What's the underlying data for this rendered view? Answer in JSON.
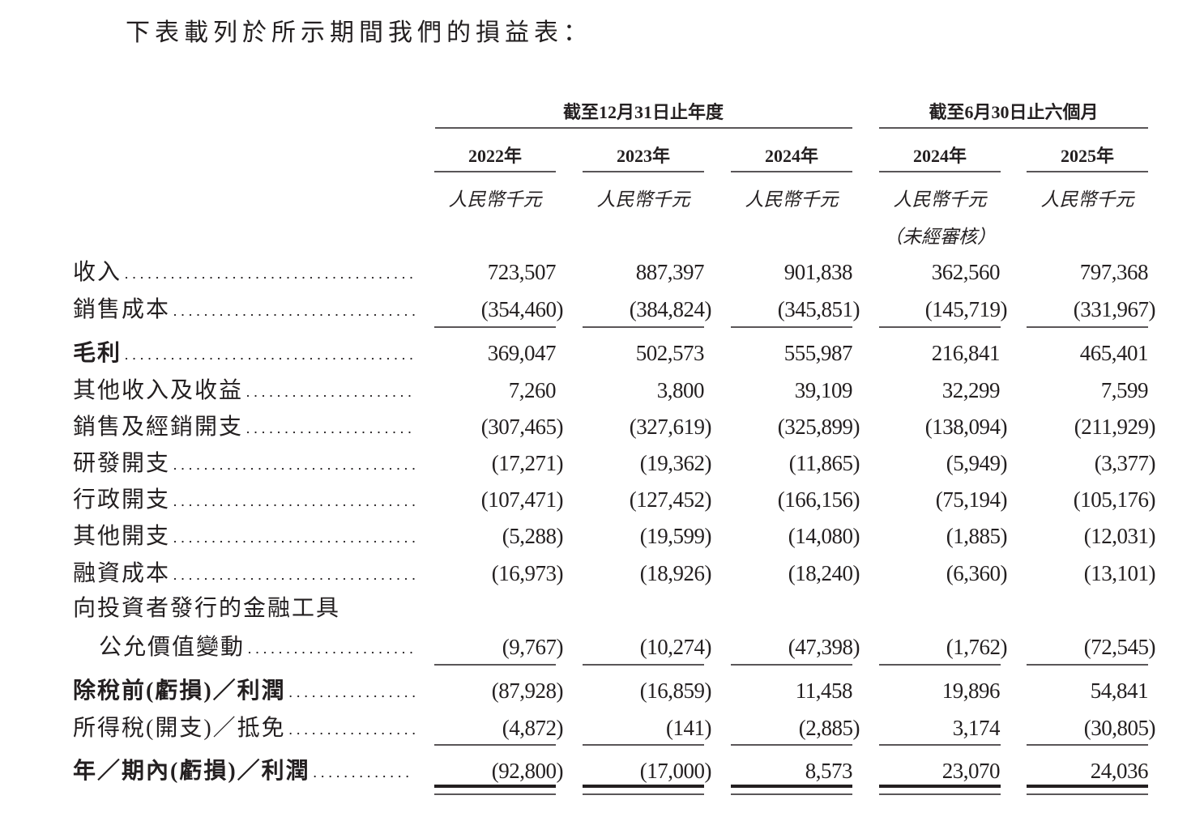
{
  "intro": "下表載列於所示期間我們的損益表：",
  "table": {
    "groups": [
      "截至12月31日止年度",
      "截至6月30日止六個月"
    ],
    "years": [
      "2022年",
      "2023年",
      "2024年",
      "2024年",
      "2025年"
    ],
    "units": [
      "人民幣千元",
      "人民幣千元",
      "人民幣千元",
      "人民幣千元",
      "人民幣千元"
    ],
    "unaudited": "（未經審核）",
    "rows": [
      {
        "label": "收入",
        "values": [
          "723,507",
          "887,397",
          "901,838",
          "362,560",
          "797,368"
        ]
      },
      {
        "label": "銷售成本",
        "values": [
          "(354,460)",
          "(384,824)",
          "(345,851)",
          "(145,719)",
          "(331,967)"
        ]
      },
      {
        "label": "毛利",
        "bold": true,
        "values": [
          "369,047",
          "502,573",
          "555,987",
          "216,841",
          "465,401"
        ]
      },
      {
        "label": "其他收入及收益",
        "values": [
          "7,260",
          "3,800",
          "39,109",
          "32,299",
          "7,599"
        ]
      },
      {
        "label": "銷售及經銷開支",
        "values": [
          "(307,465)",
          "(327,619)",
          "(325,899)",
          "(138,094)",
          "(211,929)"
        ]
      },
      {
        "label": "研發開支",
        "values": [
          "(17,271)",
          "(19,362)",
          "(11,865)",
          "(5,949)",
          "(3,377)"
        ]
      },
      {
        "label": "行政開支",
        "values": [
          "(107,471)",
          "(127,452)",
          "(166,156)",
          "(75,194)",
          "(105,176)"
        ]
      },
      {
        "label": "其他開支",
        "values": [
          "(5,288)",
          "(19,599)",
          "(14,080)",
          "(1,885)",
          "(12,031)"
        ]
      },
      {
        "label": "融資成本",
        "values": [
          "(16,973)",
          "(18,926)",
          "(18,240)",
          "(6,360)",
          "(13,101)"
        ]
      },
      {
        "label": "向投資者發行的金融工具",
        "label_continued": "公允價值變動",
        "values": [
          "(9,767)",
          "(10,274)",
          "(47,398)",
          "(1,762)",
          "(72,545)"
        ]
      },
      {
        "label": "除稅前(虧損)／利潤",
        "bold": true,
        "values": [
          "(87,928)",
          "(16,859)",
          "11,458",
          "19,896",
          "54,841"
        ]
      },
      {
        "label": "所得稅(開支)／抵免",
        "values": [
          "(4,872)",
          "(141)",
          "(2,885)",
          "3,174",
          "(30,805)"
        ]
      },
      {
        "label": "年／期內(虧損)／利潤",
        "bold": true,
        "values": [
          "(92,800)",
          "(17,000)",
          "8,573",
          "23,070",
          "24,036"
        ]
      }
    ]
  }
}
